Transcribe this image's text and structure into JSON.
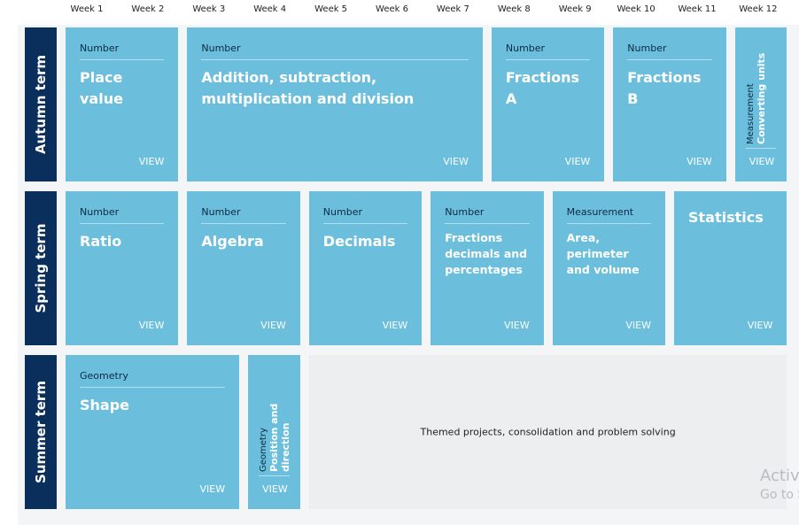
{
  "header": {
    "weeks": [
      "Week 1",
      "Week 2",
      "Week 3",
      "Week 4",
      "Week 5",
      "Week 6",
      "Week 7",
      "Week 8",
      "Week 9",
      "Week 10",
      "Week 11",
      "Week 12"
    ]
  },
  "terms": [
    {
      "label": "Autumn term",
      "blocks": [
        {
          "category": "Number",
          "title": "Place value",
          "link": "VIEW"
        },
        {
          "category": "Number",
          "title": "Addition, subtraction, multiplication and division",
          "link": "VIEW"
        },
        {
          "category": "Number",
          "title": "Fractions A",
          "link": "VIEW"
        },
        {
          "category": "Number",
          "title": "Fractions B",
          "link": "VIEW"
        },
        {
          "category": "Measurement",
          "title": "Converting units",
          "link": "VIEW"
        }
      ]
    },
    {
      "label": "Spring term",
      "blocks": [
        {
          "category": "Number",
          "title": "Ratio",
          "link": "VIEW"
        },
        {
          "category": "Number",
          "title": "Algebra",
          "link": "VIEW"
        },
        {
          "category": "Number",
          "title": "Decimals",
          "link": "VIEW"
        },
        {
          "category": "Number",
          "title": "Fractions decimals and percentages",
          "link": "VIEW"
        },
        {
          "category": "Measurement",
          "title": "Area, perimeter and volume",
          "link": "VIEW"
        },
        {
          "title": "Statistics",
          "link": "VIEW"
        }
      ]
    },
    {
      "label": "Summer term",
      "blocks": [
        {
          "category": "Geometry",
          "title": "Shape",
          "link": "VIEW"
        },
        {
          "category": "Geometry",
          "title": "Position and direction",
          "link": "VIEW"
        },
        {
          "title": "Themed projects, consolidation and problem solving"
        }
      ]
    }
  ],
  "watermark": {
    "line1": "Activ",
    "line2": "Go to S"
  }
}
